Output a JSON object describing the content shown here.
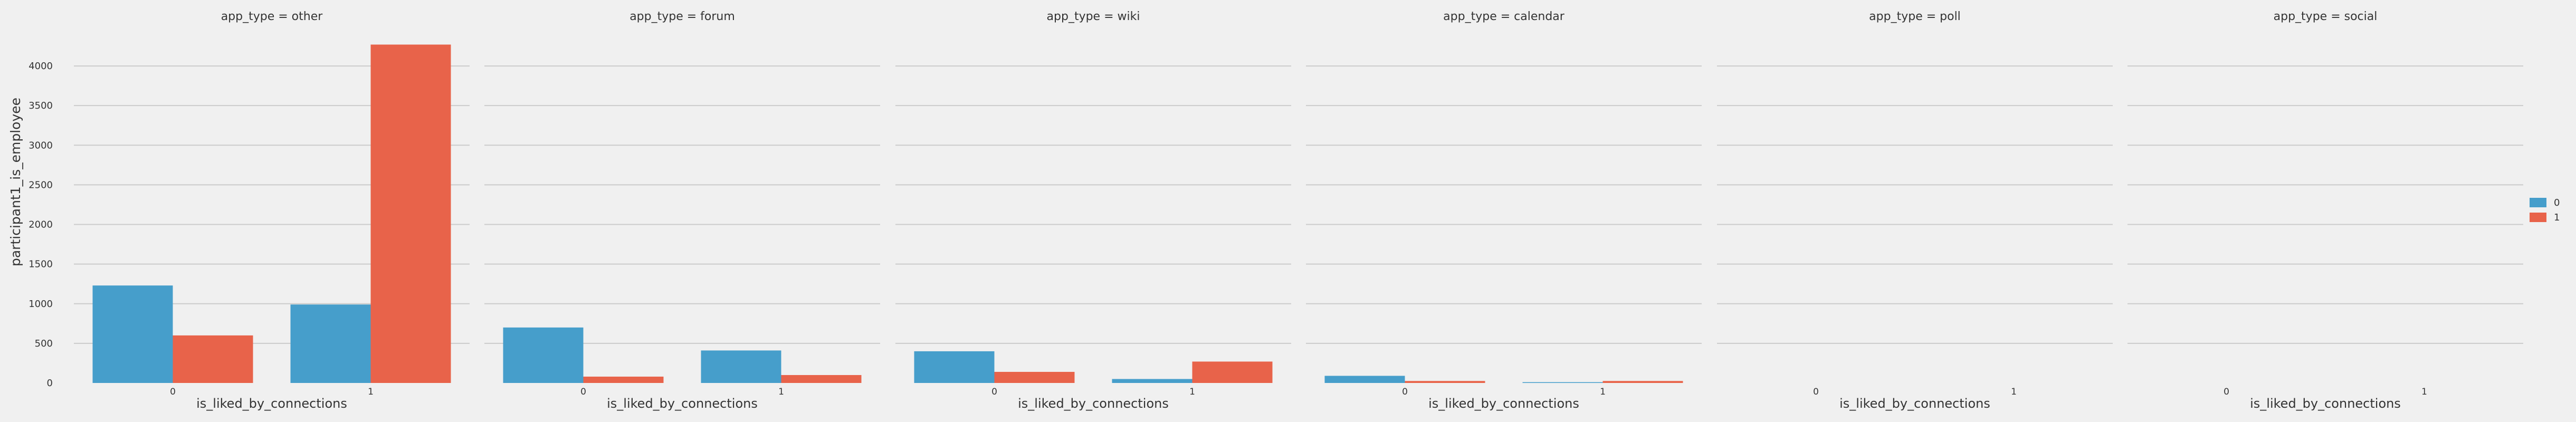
{
  "chart_data": {
    "type": "bar",
    "facet_variable": "app_type",
    "facet_titles": [
      "app_type = other",
      "app_type = forum",
      "app_type = wiki",
      "app_type = calendar",
      "app_type = poll",
      "app_type = social"
    ],
    "xlabel": "is_liked_by_connections",
    "ylabel": "participant1_is_employee",
    "categories": [
      "0",
      "1"
    ],
    "ylim": [
      0,
      4300
    ],
    "yticks": [
      "0",
      "500",
      "1000",
      "1500",
      "2000",
      "2500",
      "3000",
      "3500",
      "4000"
    ],
    "grid": true,
    "legend": {
      "placement": "right",
      "entries": [
        "0",
        "1"
      ]
    },
    "colors": {
      "series_0": "#469ecb",
      "series_1": "#e8634a",
      "background": "#f0f0f0",
      "grid": "#cbcbcb",
      "text": "#333333"
    },
    "panels": [
      {
        "series": [
          {
            "name": "0",
            "values": [
              1230,
              990
            ]
          },
          {
            "name": "1",
            "values": [
              600,
              4270
            ]
          }
        ]
      },
      {
        "series": [
          {
            "name": "0",
            "values": [
              700,
              410
            ]
          },
          {
            "name": "1",
            "values": [
              80,
              100
            ]
          }
        ]
      },
      {
        "series": [
          {
            "name": "0",
            "values": [
              400,
              50
            ]
          },
          {
            "name": "1",
            "values": [
              140,
              270
            ]
          }
        ]
      },
      {
        "series": [
          {
            "name": "0",
            "values": [
              90,
              10
            ]
          },
          {
            "name": "1",
            "values": [
              25,
              25
            ]
          }
        ]
      },
      {
        "series": [
          {
            "name": "0",
            "values": [
              0,
              0
            ]
          },
          {
            "name": "1",
            "values": [
              0,
              0
            ]
          }
        ]
      },
      {
        "series": [
          {
            "name": "0",
            "values": [
              0,
              0
            ]
          },
          {
            "name": "1",
            "values": [
              0,
              0
            ]
          }
        ]
      }
    ]
  }
}
